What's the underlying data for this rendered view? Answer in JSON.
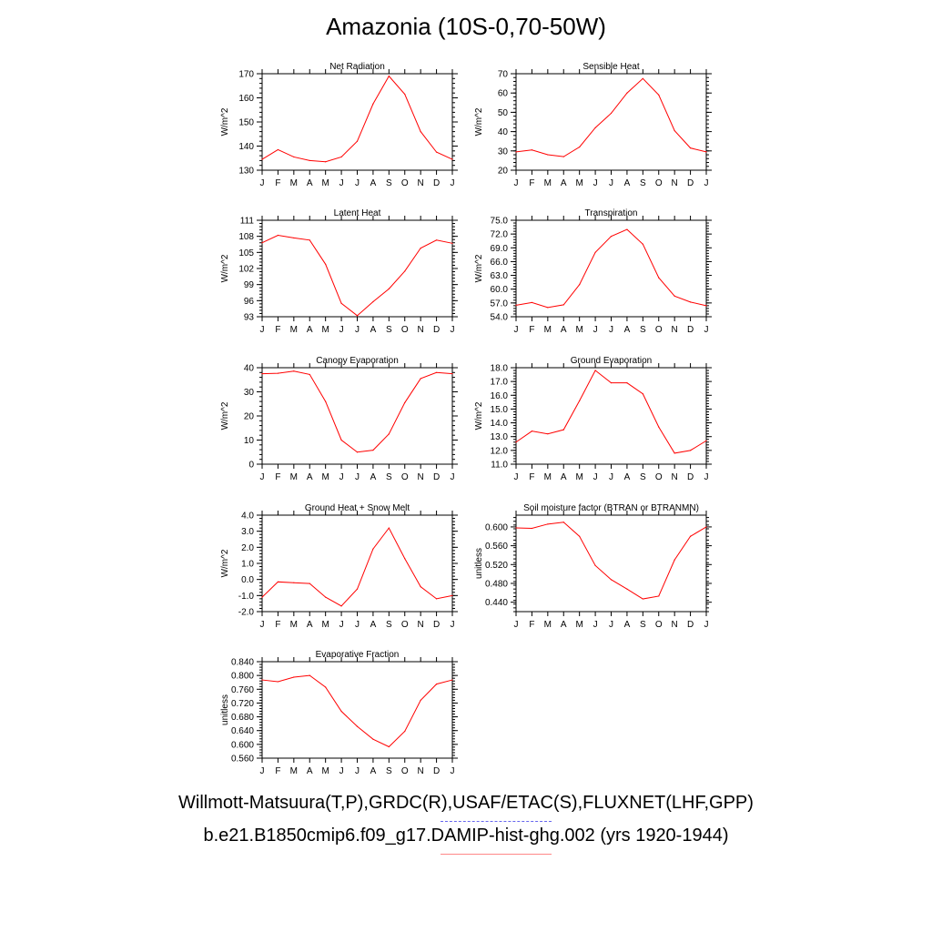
{
  "page": {
    "title": "Amazonia (10S-0,70-50W)",
    "legend_obs": "Willmott-Matsuura(T,P),GRDC(R),USAF/ETAC(S),FLUXNET(LHF,GPP)",
    "legend_model": "b.e21.B1850cmip6.f09_g17.DAMIP-hist-ghg.002 (yrs 1920-1944)",
    "obs_color": "#6666ee",
    "model_color": "#ff0000"
  },
  "chart_data": [
    {
      "type": "line",
      "title": "Net Radiation",
      "ylabel": "W/m^2",
      "x": [
        "J",
        "F",
        "M",
        "A",
        "M",
        "J",
        "J",
        "A",
        "S",
        "O",
        "N",
        "D",
        "J"
      ],
      "ylim": [
        130,
        170
      ],
      "yticks": [
        130,
        140,
        150,
        160,
        170
      ],
      "ytick_labels": [
        "130",
        "140",
        "150",
        "160",
        "170"
      ],
      "series": [
        {
          "values": [
            134.5,
            138.5,
            135.5,
            134.0,
            133.5,
            135.5,
            142.0,
            157.5,
            169.0,
            161.5,
            146.0,
            137.5,
            134.5
          ],
          "color": "#ff0000"
        }
      ]
    },
    {
      "type": "line",
      "title": "Sensible Heat",
      "ylabel": "W/m^2",
      "x": [
        "J",
        "F",
        "M",
        "A",
        "M",
        "J",
        "J",
        "A",
        "S",
        "O",
        "N",
        "D",
        "J"
      ],
      "ylim": [
        20,
        70
      ],
      "yticks": [
        20,
        30,
        40,
        50,
        60,
        70
      ],
      "ytick_labels": [
        "20",
        "30",
        "40",
        "50",
        "60",
        "70"
      ],
      "series": [
        {
          "values": [
            29.5,
            30.5,
            28.0,
            27.0,
            32.0,
            42.0,
            49.5,
            60.0,
            67.5,
            59.0,
            40.5,
            31.5,
            29.5
          ],
          "color": "#ff0000"
        }
      ]
    },
    {
      "type": "line",
      "title": "Latent Heat",
      "ylabel": "W/m^2",
      "x": [
        "J",
        "F",
        "M",
        "A",
        "M",
        "J",
        "J",
        "A",
        "S",
        "O",
        "N",
        "D",
        "J"
      ],
      "ylim": [
        93,
        111
      ],
      "yticks": [
        93,
        96,
        99,
        102,
        105,
        108,
        111
      ],
      "ytick_labels": [
        "93",
        "96",
        "99",
        "102",
        "105",
        "108",
        "111"
      ],
      "series": [
        {
          "values": [
            106.8,
            108.2,
            107.7,
            107.3,
            102.8,
            95.5,
            93.2,
            95.8,
            98.2,
            101.5,
            105.8,
            107.3,
            106.7
          ],
          "color": "#ff0000"
        }
      ]
    },
    {
      "type": "line",
      "title": "Transpiration",
      "ylabel": "W/m^2",
      "x": [
        "J",
        "F",
        "M",
        "A",
        "M",
        "J",
        "J",
        "A",
        "S",
        "O",
        "N",
        "D",
        "J"
      ],
      "ylim": [
        54,
        75
      ],
      "yticks": [
        54,
        57,
        60,
        63,
        66,
        69,
        72,
        75
      ],
      "ytick_labels": [
        "54.0",
        "57.0",
        "60.0",
        "63.0",
        "66.0",
        "69.0",
        "72.0",
        "75.0"
      ],
      "series": [
        {
          "values": [
            56.5,
            57.1,
            56.0,
            56.6,
            61.0,
            68.0,
            71.5,
            73.0,
            69.8,
            62.5,
            58.5,
            57.2,
            56.4
          ],
          "color": "#ff0000"
        }
      ]
    },
    {
      "type": "line",
      "title": "Canopy Evaporation",
      "ylabel": "W/m^2",
      "x": [
        "J",
        "F",
        "M",
        "A",
        "M",
        "J",
        "J",
        "A",
        "S",
        "O",
        "N",
        "D",
        "J"
      ],
      "ylim": [
        0,
        40
      ],
      "yticks": [
        0,
        10,
        20,
        30,
        40
      ],
      "ytick_labels": [
        "0",
        "10",
        "20",
        "30",
        "40"
      ],
      "series": [
        {
          "values": [
            37.5,
            37.7,
            38.6,
            37.2,
            26.0,
            10.0,
            5.0,
            5.8,
            12.5,
            25.5,
            35.5,
            38.0,
            37.5
          ],
          "color": "#ff0000"
        }
      ]
    },
    {
      "type": "line",
      "title": "Ground Evaporation",
      "ylabel": "W/m^2",
      "x": [
        "J",
        "F",
        "M",
        "A",
        "M",
        "J",
        "J",
        "A",
        "S",
        "O",
        "N",
        "D",
        "J"
      ],
      "ylim": [
        11,
        18
      ],
      "yticks": [
        11,
        12,
        13,
        14,
        15,
        16,
        17,
        18
      ],
      "ytick_labels": [
        "11.0",
        "12.0",
        "13.0",
        "14.0",
        "15.0",
        "16.0",
        "17.0",
        "18.0"
      ],
      "series": [
        {
          "values": [
            12.6,
            13.4,
            13.2,
            13.5,
            15.6,
            17.8,
            16.9,
            16.9,
            16.1,
            13.7,
            11.8,
            12.0,
            12.7
          ],
          "color": "#ff0000"
        }
      ]
    },
    {
      "type": "line",
      "title": "Ground Heat + Snow Melt",
      "ylabel": "W/m^2",
      "x": [
        "J",
        "F",
        "M",
        "A",
        "M",
        "J",
        "J",
        "A",
        "S",
        "O",
        "N",
        "D",
        "J"
      ],
      "ylim": [
        -2,
        4
      ],
      "yticks": [
        -2,
        -1,
        0,
        1,
        2,
        3,
        4
      ],
      "ytick_labels": [
        "-2.0",
        "-1.0",
        "0.0",
        "1.0",
        "2.0",
        "3.0",
        "4.0"
      ],
      "series": [
        {
          "values": [
            -1.1,
            -0.15,
            -0.2,
            -0.25,
            -1.1,
            -1.65,
            -0.6,
            1.9,
            3.2,
            1.3,
            -0.45,
            -1.2,
            -1.0
          ],
          "color": "#ff0000"
        }
      ]
    },
    {
      "type": "line",
      "title": "Soil moisture factor (BTRAN or BTRANMN)",
      "ylabel": "unitless",
      "x": [
        "J",
        "F",
        "M",
        "A",
        "M",
        "J",
        "J",
        "A",
        "S",
        "O",
        "N",
        "D",
        "J"
      ],
      "ylim": [
        0.42,
        0.625
      ],
      "yticks": [
        0.44,
        0.48,
        0.52,
        0.56,
        0.6
      ],
      "ytick_labels": [
        "0.440",
        "0.480",
        "0.520",
        "0.560",
        "0.600"
      ],
      "series": [
        {
          "values": [
            0.598,
            0.597,
            0.606,
            0.61,
            0.58,
            0.518,
            0.488,
            0.468,
            0.447,
            0.453,
            0.53,
            0.58,
            0.6
          ],
          "color": "#ff0000"
        }
      ]
    },
    {
      "type": "line",
      "title": "Evaporative Fraction",
      "ylabel": "unitless",
      "x": [
        "J",
        "F",
        "M",
        "A",
        "M",
        "J",
        "J",
        "A",
        "S",
        "O",
        "N",
        "D",
        "J"
      ],
      "ylim": [
        0.56,
        0.84
      ],
      "yticks": [
        0.56,
        0.6,
        0.64,
        0.68,
        0.72,
        0.76,
        0.8,
        0.84
      ],
      "ytick_labels": [
        "0.560",
        "0.600",
        "0.640",
        "0.680",
        "0.720",
        "0.760",
        "0.800",
        "0.840"
      ],
      "series": [
        {
          "values": [
            0.787,
            0.782,
            0.795,
            0.8,
            0.766,
            0.696,
            0.652,
            0.615,
            0.593,
            0.638,
            0.728,
            0.775,
            0.787
          ],
          "color": "#ff0000"
        }
      ]
    }
  ]
}
